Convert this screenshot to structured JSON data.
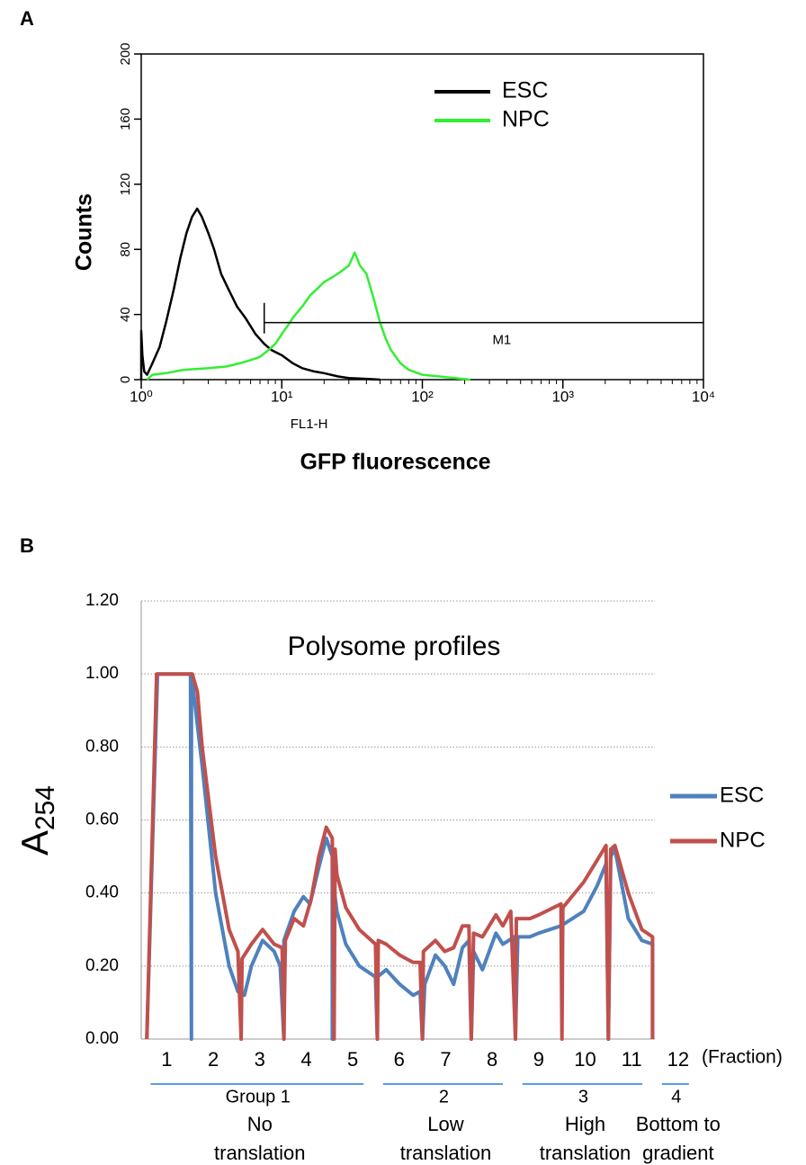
{
  "chart_data": [
    {
      "type": "line",
      "panel": "A",
      "xscale": "log",
      "xlabel": "GFP fluorescence",
      "xsublabel": "FL1-H",
      "ylabel": "Counts",
      "xlim": [
        1,
        10000
      ],
      "ylim": [
        0,
        200
      ],
      "xticks": [
        {
          "value": 1,
          "label": "10⁰"
        },
        {
          "value": 10,
          "label": "10¹"
        },
        {
          "value": 100,
          "label": "10²"
        },
        {
          "value": 1000,
          "label": "10³"
        },
        {
          "value": 10000,
          "label": "10⁴"
        }
      ],
      "yticks": [
        0,
        40,
        80,
        120,
        160,
        200
      ],
      "grid": false,
      "legend": "upper right",
      "gate": {
        "label": "M1",
        "x": [
          7.5,
          10000
        ],
        "y": 35
      },
      "series": [
        {
          "name": "ESC",
          "color": "#000000",
          "x": [
            1.0,
            1.0,
            1.02,
            1.05,
            1.1,
            1.2,
            1.35,
            1.5,
            1.7,
            1.9,
            2.1,
            2.3,
            2.5,
            2.7,
            3.0,
            3.3,
            3.7,
            4.2,
            4.8,
            5.5,
            6.5,
            7.5,
            8.5,
            10,
            12,
            14,
            17,
            20,
            25,
            30,
            40,
            50
          ],
          "values": [
            0,
            30,
            15,
            5,
            3,
            10,
            20,
            35,
            55,
            75,
            90,
            100,
            105,
            100,
            90,
            80,
            65,
            55,
            45,
            38,
            28,
            22,
            18,
            15,
            10,
            7,
            5,
            4,
            2,
            1,
            0.5,
            0
          ]
        },
        {
          "name": "NPC",
          "color": "#33ee33",
          "x": [
            1.1,
            1.2,
            1.5,
            2,
            3,
            4,
            5,
            6,
            7,
            8,
            9,
            10,
            11,
            12,
            14,
            16,
            18,
            20,
            23,
            26,
            30,
            33,
            36,
            40,
            45,
            50,
            55,
            60,
            70,
            80,
            100,
            130,
            170,
            220
          ],
          "values": [
            0,
            3,
            4,
            6,
            7,
            8,
            10,
            12,
            14,
            18,
            22,
            28,
            33,
            38,
            45,
            52,
            56,
            60,
            63,
            66,
            70,
            78,
            70,
            65,
            50,
            35,
            25,
            18,
            10,
            6,
            3,
            2,
            1,
            0
          ]
        }
      ]
    },
    {
      "type": "line",
      "panel": "B",
      "title": "Polysome profiles",
      "ylabel": "A",
      "ylabel_sub": "254",
      "xlabel": "(Fraction)",
      "xlim": [
        0.45,
        11.5
      ],
      "ylim": [
        0,
        1.2
      ],
      "xticks": [
        1,
        2,
        3,
        4,
        5,
        6,
        7,
        8,
        9,
        10,
        11,
        12
      ],
      "yticks": [
        {
          "value": 0,
          "label": "0.00"
        },
        {
          "value": 0.2,
          "label": "0.20"
        },
        {
          "value": 0.4,
          "label": "0.40"
        },
        {
          "value": 0.6,
          "label": "0.60"
        },
        {
          "value": 0.8,
          "label": "0.80"
        },
        {
          "value": 1.0,
          "label": "1.00"
        },
        {
          "value": 1.2,
          "label": "1.20"
        }
      ],
      "grid": true,
      "legend": "right",
      "groups": [
        {
          "label": "Group 1",
          "description": [
            "No",
            "translation"
          ],
          "from": 1,
          "to": 5
        },
        {
          "label": "2",
          "description": [
            "Low",
            "translation"
          ],
          "from": 6,
          "to": 8
        },
        {
          "label": "3",
          "description": [
            "High",
            "translation"
          ],
          "from": 9,
          "to": 11
        },
        {
          "label": "4",
          "description": [
            "Bottom to",
            "gradient"
          ],
          "from": 12,
          "to": 12
        }
      ],
      "series": [
        {
          "name": "ESC",
          "color": "#4f81bd",
          "x": [
            0.57,
            0.8,
            1.51,
            1.53,
            1.53,
            1.76,
            2.05,
            2.34,
            2.53,
            2.67,
            2.82,
            3.06,
            3.31,
            3.44,
            3.52,
            3.52,
            3.74,
            3.94,
            4.08,
            4.27,
            4.43,
            4.56,
            4.56,
            4.56,
            4.66,
            4.85,
            5.14,
            5.49,
            5.53,
            5.53,
            5.72,
            6.01,
            6.3,
            6.45,
            6.5,
            6.55,
            6.78,
            6.98,
            7.17,
            7.36,
            7.5,
            7.55,
            7.6,
            7.79,
            8.08,
            8.23,
            8.48,
            8.5,
            8.55,
            8.81,
            9.0,
            9.48,
            9.97,
            10.26,
            10.45,
            10.5,
            10.55,
            10.64,
            10.93,
            11.22,
            11.45,
            11.45
          ],
          "values": [
            0,
            1.0,
            1.0,
            0,
            1.0,
            0.75,
            0.4,
            0.2,
            0.13,
            0.12,
            0.2,
            0.27,
            0.24,
            0.2,
            0,
            0.27,
            0.35,
            0.39,
            0.37,
            0.47,
            0.55,
            0.5,
            0,
            0.45,
            0.35,
            0.26,
            0.2,
            0.17,
            0,
            0.17,
            0.19,
            0.15,
            0.12,
            0.13,
            0,
            0.15,
            0.23,
            0.2,
            0.15,
            0.25,
            0.27,
            0,
            0.24,
            0.19,
            0.29,
            0.26,
            0.28,
            0,
            0.28,
            0.28,
            0.29,
            0.31,
            0.35,
            0.42,
            0.48,
            0,
            0.5,
            0.52,
            0.33,
            0.27,
            0.26,
            0
          ]
        },
        {
          "name": "NPC",
          "color": "#c0504d",
          "x": [
            0.57,
            0.78,
            1.55,
            1.66,
            1.76,
            2.05,
            2.34,
            2.53,
            2.6,
            2.62,
            2.82,
            3.06,
            3.31,
            3.48,
            3.52,
            3.55,
            3.74,
            3.94,
            4.1,
            4.27,
            4.43,
            4.56,
            4.6,
            4.62,
            4.66,
            4.85,
            5.14,
            5.49,
            5.53,
            5.55,
            5.72,
            6.01,
            6.3,
            6.45,
            6.5,
            6.52,
            6.78,
            6.98,
            7.17,
            7.36,
            7.5,
            7.55,
            7.6,
            7.79,
            8.08,
            8.23,
            8.4,
            8.5,
            8.52,
            8.81,
            9.0,
            9.48,
            9.5,
            9.52,
            9.97,
            10.26,
            10.45,
            10.5,
            10.55,
            10.64,
            10.93,
            11.22,
            11.45,
            11.45
          ],
          "values": [
            0,
            1.0,
            1.0,
            0.95,
            0.8,
            0.5,
            0.3,
            0.24,
            0,
            0.22,
            0.26,
            0.3,
            0.26,
            0.25,
            0,
            0.27,
            0.33,
            0.31,
            0.38,
            0.5,
            0.58,
            0.55,
            0,
            0.52,
            0.45,
            0.36,
            0.3,
            0.26,
            0,
            0.27,
            0.26,
            0.23,
            0.21,
            0.21,
            0,
            0.24,
            0.27,
            0.24,
            0.25,
            0.31,
            0.31,
            0,
            0.29,
            0.28,
            0.34,
            0.31,
            0.35,
            0,
            0.33,
            0.33,
            0.34,
            0.37,
            0,
            0.36,
            0.43,
            0.49,
            0.53,
            0,
            0.52,
            0.53,
            0.4,
            0.3,
            0.28,
            0
          ]
        }
      ]
    }
  ]
}
